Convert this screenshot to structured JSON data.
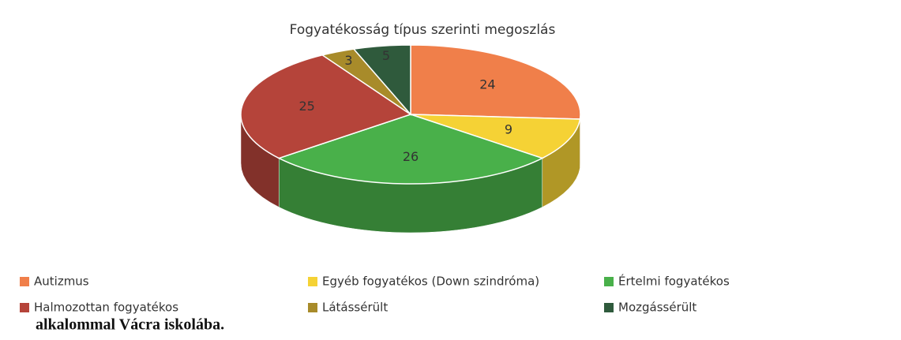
{
  "chart_data": {
    "type": "pie3d",
    "title": "Fogyatékosság típus szerinti megoszlás",
    "categories": [
      "Autizmus",
      "Egyéb fogyatékos (Down szindróma)",
      "Értelmi fogyatékos",
      "Halmozottan fogyatékos",
      "Látássérült",
      "Mozgássérült"
    ],
    "values": [
      24,
      9,
      26,
      25,
      3,
      5
    ],
    "colors": [
      "#f07f4a",
      "#f5d235",
      "#49b04a",
      "#b5443a",
      "#a88b2a",
      "#2f5a3c"
    ],
    "legend": "bottom"
  },
  "text": "alkalommal Vácra iskolába."
}
